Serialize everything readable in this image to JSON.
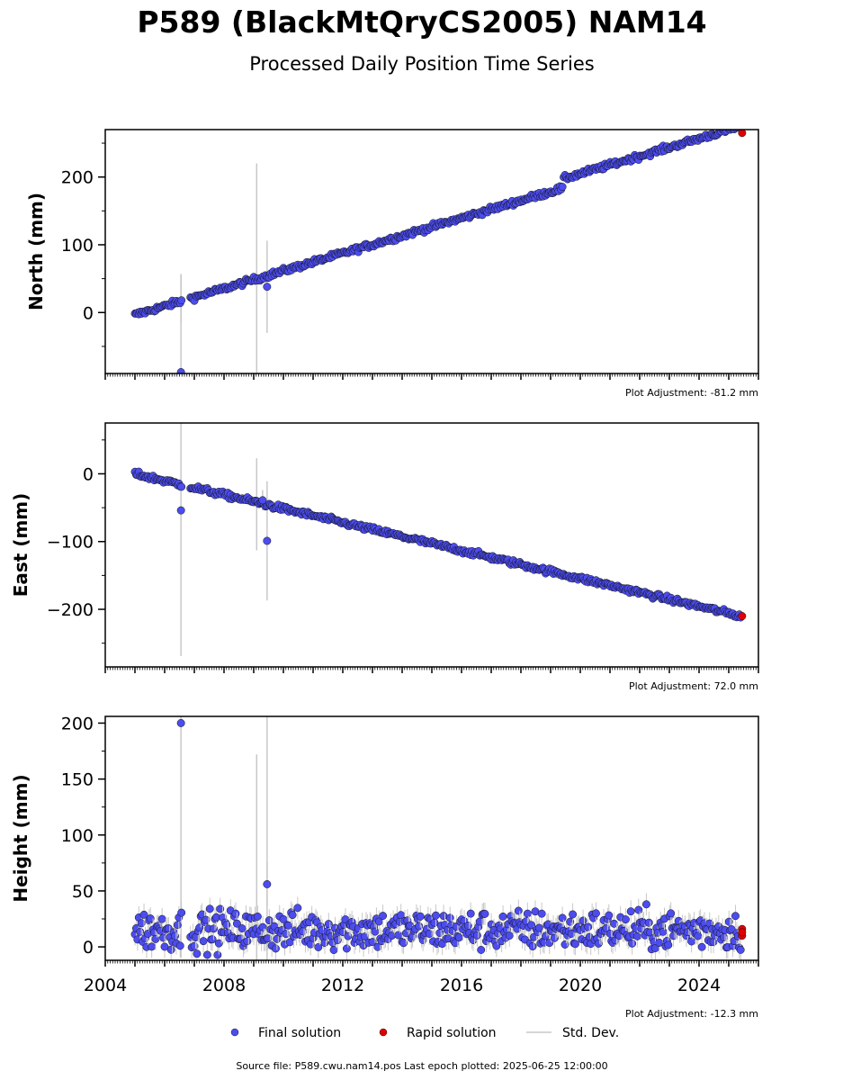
{
  "title": "P589 (BlackMtQryCS2005) NAM14",
  "subtitle": "Processed Daily Position Time Series",
  "legend": {
    "final": "Final solution",
    "rapid": "Rapid solution",
    "std": "Std. Dev."
  },
  "footer": "Source file: P589.cwu.nam14.pos  Last epoch plotted: 2025-06-25 12:00:00",
  "colors": {
    "final": "#4c4cf0",
    "rapid": "#e00000",
    "std": "#c8c8c8"
  },
  "chart_data": {
    "type": "scatter",
    "xlim": [
      2004,
      2026
    ],
    "xticks": [
      "2004",
      "2008",
      "2012",
      "2016",
      "2020",
      "2024"
    ],
    "panels": [
      {
        "id": "north",
        "ylabel": "North (mm)",
        "ylim": [
          -90,
          270
        ],
        "yticks": [
          0,
          100,
          200
        ],
        "adjustment": "Plot Adjustment: -81.2 mm",
        "trend": {
          "x0": 2005.0,
          "y0": 0,
          "x1": 2025.4,
          "y1": 265
        },
        "step": {
          "at": 2019.4,
          "size": 10
        },
        "noise": 2,
        "outliers": [
          {
            "x": 2006.55,
            "y": -88,
            "err": 145
          },
          {
            "x": 2009.45,
            "y": 38,
            "err": 68
          }
        ],
        "errbars": [
          {
            "x": 2006.55,
            "y": 20,
            "err": 35
          },
          {
            "x": 2009.1,
            "y": 52,
            "err": 168
          }
        ]
      },
      {
        "id": "east",
        "ylabel": "East (mm)",
        "ylim": [
          -285,
          75
        ],
        "yticks": [
          0,
          -100,
          -200
        ],
        "adjustment": "Plot Adjustment: 72.0 mm",
        "trend": {
          "x0": 2005.0,
          "y0": 0,
          "x1": 2025.4,
          "y1": -210
        },
        "step": null,
        "noise": 2,
        "outliers": [
          {
            "x": 2006.55,
            "y": -54,
            "err": 215
          },
          {
            "x": 2009.45,
            "y": -99,
            "err": 88
          },
          {
            "x": 2009.3,
            "y": -39,
            "err": 15
          }
        ],
        "errbars": [
          {
            "x": 2009.1,
            "y": -45,
            "err": 68
          }
        ]
      },
      {
        "id": "height",
        "ylabel": "Height (mm)",
        "ylim": [
          -12,
          206
        ],
        "yticks": [
          0,
          50,
          100,
          150,
          200
        ],
        "adjustment": "Plot Adjustment: -12.3 mm",
        "trend": {
          "x0": 2005.0,
          "y0": 15,
          "x1": 2025.4,
          "y1": 15
        },
        "step": null,
        "noise": 9,
        "outliers": [
          {
            "x": 2006.55,
            "y": 200,
            "err": 210
          },
          {
            "x": 2009.45,
            "y": 56,
            "err": 20
          }
        ],
        "errbars": [
          {
            "x": 2009.1,
            "y": 20,
            "err": 152
          },
          {
            "x": 2009.45,
            "y": 60,
            "err": 150
          }
        ]
      }
    ]
  }
}
